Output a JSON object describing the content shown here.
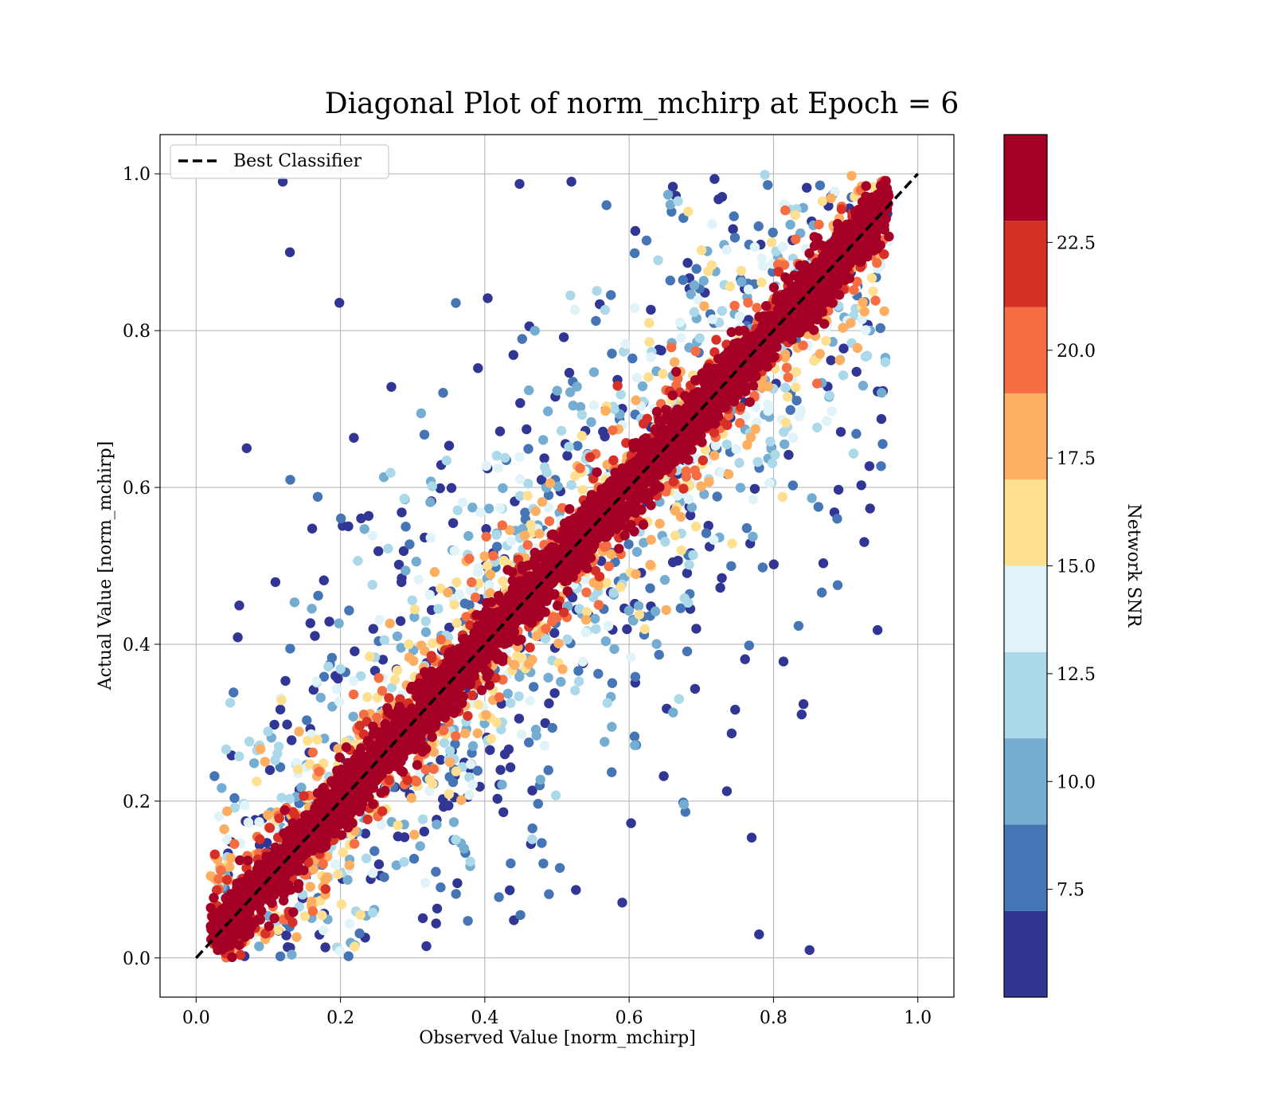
{
  "chart_data": {
    "type": "scatter",
    "title": "Diagonal Plot of norm_mchirp at Epoch = 6",
    "xlabel": "Observed Value [norm_mchirp]",
    "ylabel": "Actual Value [norm_mchirp]",
    "xlim": [
      -0.05,
      1.05
    ],
    "ylim": [
      -0.05,
      1.05
    ],
    "xticks": [
      "0.0",
      "0.2",
      "0.4",
      "0.6",
      "0.8",
      "1.0"
    ],
    "yticks": [
      "0.0",
      "0.2",
      "0.4",
      "0.6",
      "0.8",
      "1.0"
    ],
    "grid": true,
    "legend": {
      "position": "top-left",
      "entries": [
        "Best Classifier"
      ]
    },
    "reference_line": {
      "name": "Best Classifier",
      "x": [
        0.0,
        1.0
      ],
      "y": [
        0.0,
        1.0
      ],
      "style": "dashed",
      "color": "#000000"
    },
    "colorbar": {
      "label": "Network SNR",
      "range": [
        5.0,
        25.0
      ],
      "boundaries": [
        5.0,
        7.0,
        9.0,
        11.0,
        13.0,
        15.0,
        17.0,
        19.0,
        21.0,
        23.0,
        25.0
      ],
      "ticks": [
        "7.5",
        "10.0",
        "12.5",
        "15.0",
        "17.5",
        "20.0",
        "22.5"
      ],
      "tick_values": [
        7.5,
        10.0,
        12.5,
        15.0,
        17.5,
        20.0,
        22.5
      ],
      "colors": [
        "#313695",
        "#4575b4",
        "#74add1",
        "#abd9e9",
        "#e0f3f8",
        "#fee090",
        "#fdae61",
        "#f46d43",
        "#d73027",
        "#a50026"
      ]
    },
    "scatter_summary": {
      "description_of_trend": "points scatter around y = x; high SNR points close to diagonal, low SNR points spread widely",
      "x_range": [
        0.02,
        0.96
      ],
      "y_range": [
        0.0,
        1.0
      ]
    },
    "sample_points": [
      {
        "x": 0.12,
        "y": 0.99,
        "snr": 5.5
      },
      {
        "x": 0.13,
        "y": 0.9,
        "snr": 5.5
      },
      {
        "x": 0.07,
        "y": 0.65,
        "snr": 5.5
      },
      {
        "x": 0.85,
        "y": 0.01,
        "snr": 5.5
      },
      {
        "x": 0.78,
        "y": 0.03,
        "snr": 5.5
      },
      {
        "x": 0.52,
        "y": 0.99,
        "snr": 5.5
      },
      {
        "x": 0.96,
        "y": 0.92,
        "snr": 24.0
      },
      {
        "x": 0.03,
        "y": 0.01,
        "snr": 24.0
      }
    ]
  }
}
